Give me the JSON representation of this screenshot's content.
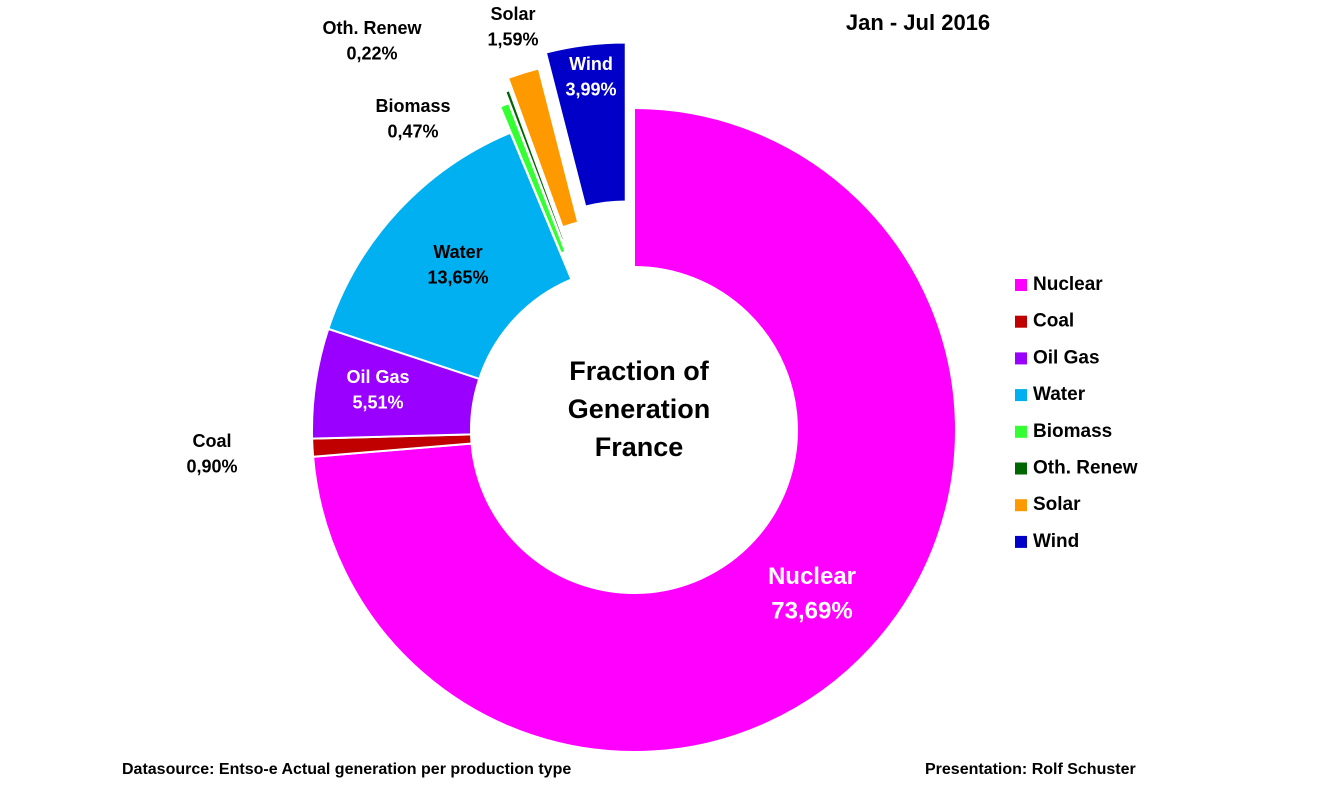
{
  "chart_data": {
    "type": "donut",
    "title": [
      "Fraction of",
      "Generation",
      "France"
    ],
    "subtitle": "Jan - Jul 2016",
    "categories": [
      "Nuclear",
      "Coal",
      "Oil Gas",
      "Water",
      "Biomass",
      "Oth. Renew",
      "Solar",
      "Wind"
    ],
    "values": [
      73.69,
      0.9,
      5.51,
      13.65,
      0.47,
      0.22,
      1.59,
      3.99
    ],
    "value_labels": [
      "73,69%",
      "0,90%",
      "5,51%",
      "13,65%",
      "0,47%",
      "0,22%",
      "1,59%",
      "3,99%"
    ],
    "colors": [
      "#ff00ff",
      "#c00000",
      "#9900ff",
      "#00b0f0",
      "#33ff33",
      "#006600",
      "#ff9900",
      "#0000c8"
    ],
    "legend": "right",
    "footnotes": [
      "Datasource: Entso-e  Actual generation per production type",
      "Presentation: Rolf Schuster"
    ]
  }
}
